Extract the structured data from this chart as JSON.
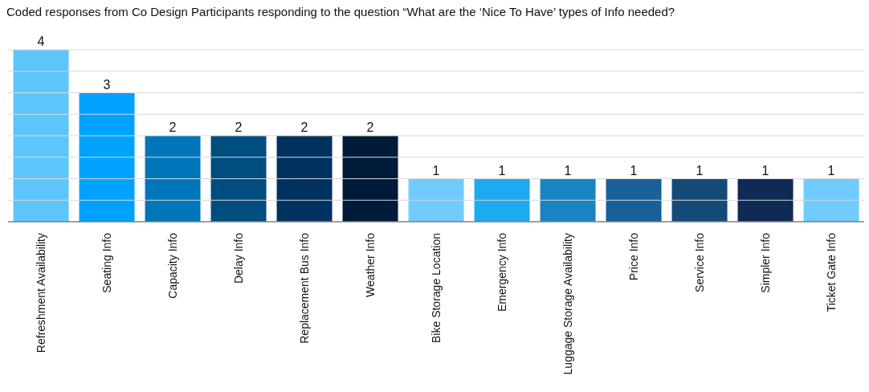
{
  "chart_data": {
    "type": "bar",
    "title": "Coded responses from Co Design Participants responding to the question “What are the ‘Nice To Have’ types of Info needed?",
    "categories": [
      "Refreshment Availability",
      "Seating Info",
      "Capacity Info",
      "Delay Info",
      "Replacement Bus Info",
      "Weather Info",
      "Bike Storage Location",
      "Emergency Info",
      "Luggage Storage Availability",
      "Price Info",
      "Service Info",
      "Simpler Info",
      "Ticket Gate Info"
    ],
    "values": [
      4,
      3,
      2,
      2,
      2,
      2,
      1,
      1,
      1,
      1,
      1,
      1,
      1
    ],
    "colors": [
      "#5ec5fb",
      "#00a2ff",
      "#0076ba",
      "#004d80",
      "#00325f",
      "#001b3a",
      "#70cbff",
      "#1eaaf1",
      "#1a84c3",
      "#18609a",
      "#134a78",
      "#0f2a55",
      "#70cbff"
    ],
    "ylim": [
      0,
      4
    ],
    "yticks": [
      {
        "value": 0,
        "label": null
      },
      {
        "value": 0.5,
        "label": null
      },
      {
        "value": 1,
        "label": null
      },
      {
        "value": 1.5,
        "label": null
      },
      {
        "value": 2,
        "label": null
      },
      {
        "value": 2.5,
        "label": null
      },
      {
        "value": 3,
        "label": null
      },
      {
        "value": 3.5,
        "label": null
      },
      {
        "value": 4,
        "label": null
      }
    ],
    "tick_labels": "x",
    "grid": "y",
    "data_labels": true
  }
}
